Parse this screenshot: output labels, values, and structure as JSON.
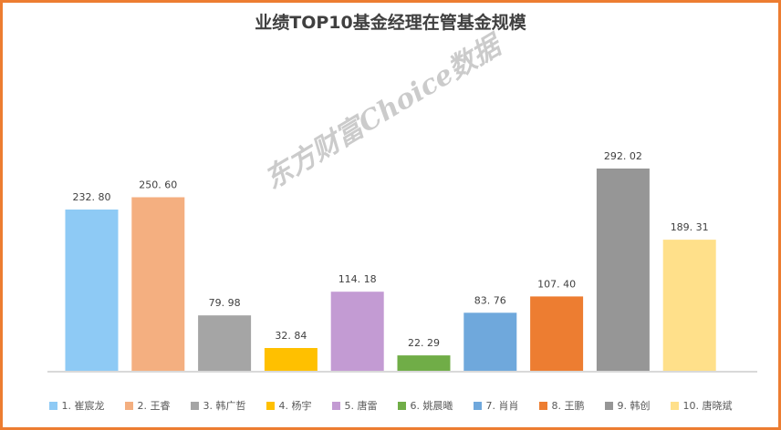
{
  "title": "业绩TOP10基金经理在管基金规模",
  "watermark": "东方财富Choice数据",
  "chart_data": {
    "type": "bar",
    "categories": [
      "1. 崔宸龙",
      "2. 王睿",
      "3. 韩广哲",
      "4. 杨宇",
      "5. 唐雷",
      "6. 姚晨曦",
      "7. 肖肖",
      "8. 王鹏",
      "9. 韩创",
      "10. 唐晓斌"
    ],
    "values": [
      232.8,
      250.6,
      79.98,
      32.84,
      114.18,
      22.29,
      83.76,
      107.4,
      292.02,
      189.31
    ],
    "labels": [
      "232. 80",
      "250. 60",
      "79. 98",
      "32. 84",
      "114. 18",
      "22. 29",
      "83. 76",
      "107. 40",
      "292. 02",
      "189. 31"
    ],
    "colors": [
      "#8ECAF5",
      "#F4AF80",
      "#A5A5A5",
      "#FFC000",
      "#C39BD3",
      "#70AD47",
      "#6FA8DC",
      "#ED7D31",
      "#969696",
      "#FFE08A"
    ],
    "ylim": [
      0,
      300
    ],
    "grid": false,
    "legend_position": "bottom"
  }
}
